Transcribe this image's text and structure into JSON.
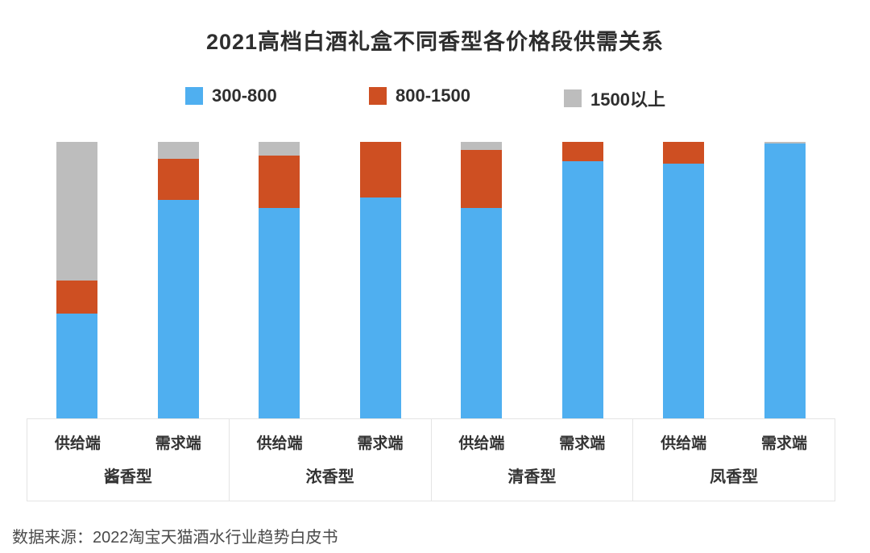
{
  "title": "2021高档白酒礼盒不同香型各价格段供需关系",
  "source": "数据来源：2022淘宝天猫酒水行业趋势白皮书",
  "colors": {
    "blue": "#4FAFF0",
    "orange": "#CE4F22",
    "gray": "#BDBDBD",
    "text_dark": "#2e2e2e",
    "border": "#e4e4e4"
  },
  "chart_data": {
    "type": "bar",
    "stacked": true,
    "unit": "percent_share",
    "title": "2021高档白酒礼盒不同香型各价格段供需关系",
    "groups": [
      "酱香型",
      "浓香型",
      "清香型",
      "凤香型"
    ],
    "bar_categories": [
      "供给端",
      "需求端"
    ],
    "bar_order": [
      "酱香型-供给端",
      "酱香型-需求端",
      "浓香型-供给端",
      "浓香型-需求端",
      "清香型-供给端",
      "清香型-需求端",
      "凤香型-供给端",
      "凤香型-需求端"
    ],
    "series": [
      {
        "name": "300-800",
        "color": "#4FAFF0",
        "values": [
          38,
          79,
          76,
          80,
          76,
          93,
          92,
          99.4
        ]
      },
      {
        "name": "800-1500",
        "color": "#CE4F22",
        "values": [
          12,
          15,
          19,
          20,
          21,
          7,
          8,
          0
        ]
      },
      {
        "name": "1500以上",
        "color": "#BDBDBD",
        "values": [
          50,
          6,
          5,
          0,
          3,
          0,
          0,
          0.6
        ]
      }
    ],
    "ylim": [
      0,
      100
    ],
    "grid": false,
    "legend_position": "top",
    "legend_entries": [
      "300-800",
      "800-1500",
      "1500以上"
    ]
  }
}
